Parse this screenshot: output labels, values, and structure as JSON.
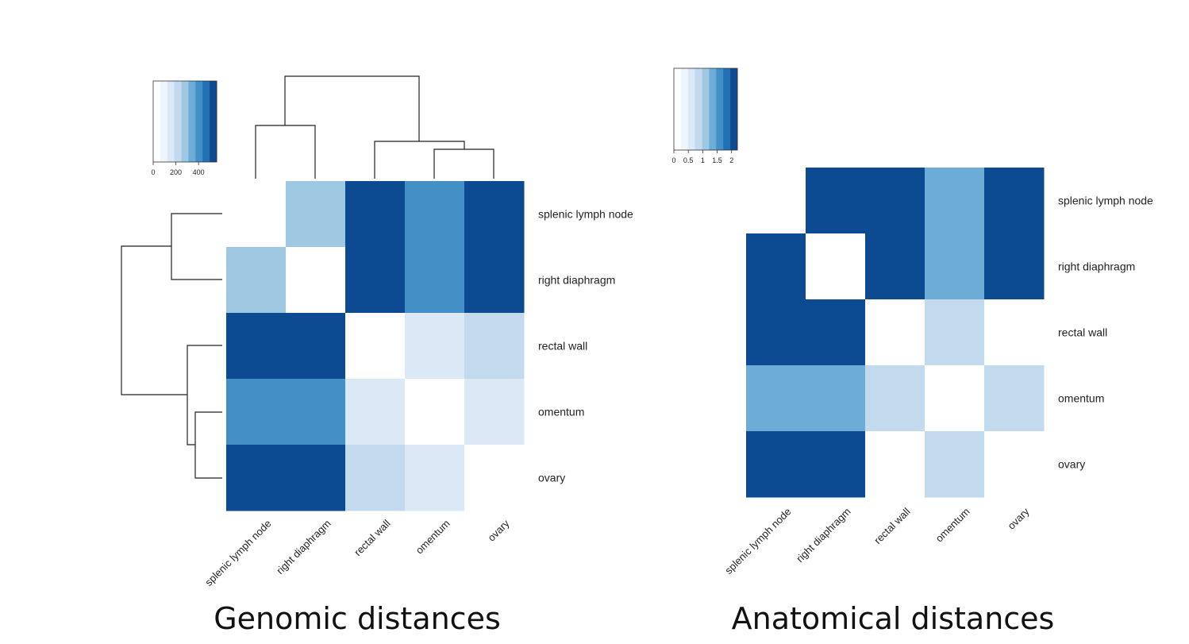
{
  "chart_data": [
    {
      "type": "heatmap",
      "title": "Genomic distances",
      "row_labels": [
        "splenic lymph node",
        "right diaphragm",
        "rectal wall",
        "omentum",
        "ovary"
      ],
      "col_labels": [
        "splenic lymph node",
        "right diaphragm",
        "rectal wall",
        "omentum",
        "ovary"
      ],
      "values": [
        [
          0,
          300,
          560,
          450,
          560
        ],
        [
          300,
          0,
          560,
          450,
          560
        ],
        [
          560,
          560,
          0,
          120,
          200
        ],
        [
          450,
          450,
          120,
          0,
          120
        ],
        [
          560,
          560,
          200,
          120,
          0
        ]
      ],
      "color_scale": {
        "min": 0,
        "max": 560,
        "tick_labels": [
          "0",
          "200",
          "400"
        ],
        "tick_values": [
          0,
          200,
          400
        ],
        "colors": [
          "#f7fbff",
          "#deebf7",
          "#c6dbef",
          "#9ecae1",
          "#6baed6",
          "#4292c6",
          "#2171b5",
          "#08519c",
          "#08306b"
        ],
        "display_colors": [
          "#ffffff",
          "#eef4fb",
          "#dbe8f5",
          "#c3d9ee",
          "#9fc8e2",
          "#6cacd6",
          "#4390c7",
          "#2270b4",
          "#0c4a91"
        ]
      },
      "dendrogram": {
        "clusters": [
          [
            "splenic lymph node",
            "right diaphragm"
          ],
          [
            [
              "omentum",
              "ovary"
            ],
            "rectal wall"
          ]
        ],
        "leaf_order": [
          "splenic lymph node",
          "right diaphragm",
          "rectal wall",
          "omentum",
          "ovary"
        ]
      }
    },
    {
      "type": "heatmap",
      "title": "Anatomical distances",
      "row_labels": [
        "splenic lymph node",
        "right diaphragm",
        "rectal wall",
        "omentum",
        "ovary"
      ],
      "col_labels": [
        "splenic lymph node",
        "right diaphragm",
        "rectal wall",
        "omentum",
        "ovary"
      ],
      "values": [
        [
          0,
          2.2,
          2.2,
          1.5,
          2.2
        ],
        [
          2.2,
          0,
          2.2,
          1.5,
          2.2
        ],
        [
          2.2,
          2.2,
          0,
          0.9,
          0
        ],
        [
          1.5,
          1.5,
          0.9,
          0,
          0.9
        ],
        [
          2.2,
          2.2,
          0,
          0.9,
          0
        ]
      ],
      "color_scale": {
        "min": 0,
        "max": 2.2,
        "tick_labels": [
          "0",
          "0.5",
          "1",
          "1.5",
          "2"
        ],
        "tick_values": [
          0,
          0.5,
          1,
          1.5,
          2
        ],
        "colors": [
          "#f7fbff",
          "#deebf7",
          "#c6dbef",
          "#9ecae1",
          "#6baed6",
          "#4292c6",
          "#2171b5",
          "#08519c",
          "#08306b"
        ],
        "display_colors": [
          "#ffffff",
          "#eef4fb",
          "#dbe8f5",
          "#c3d9ee",
          "#9fc8e2",
          "#6cacd6",
          "#4390c7",
          "#2270b4",
          "#0c4a91"
        ]
      }
    }
  ]
}
